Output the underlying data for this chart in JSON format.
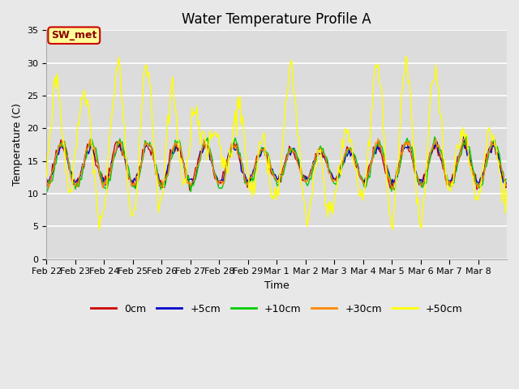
{
  "title": "Water Temperature Profile A",
  "xlabel": "Time",
  "ylabel": "Temperature (C)",
  "ylim": [
    0,
    35
  ],
  "legend_labels": [
    "0cm",
    "+5cm",
    "+10cm",
    "+30cm",
    "+50cm"
  ],
  "legend_colors": [
    "#cc0000",
    "#0000cc",
    "#00cc00",
    "#ff8800",
    "#ffff00"
  ],
  "annotation_text": "SW_met",
  "annotation_bg": "#ffff99",
  "annotation_border": "#cc0000",
  "annotation_text_color": "#880000",
  "x_tick_labels": [
    "Feb 22",
    "Feb 23",
    "Feb 24",
    "Feb 25",
    "Feb 26",
    "Feb 27",
    "Feb 28",
    "Feb 29",
    "Mar 1",
    "Mar 2",
    "Mar 3",
    "Mar 4",
    "Mar 5",
    "Mar 6",
    "Mar 7",
    "Mar 8"
  ],
  "fig_bg": "#e8e8e8",
  "plot_bg": "#dcdcdc",
  "grid_color": "#ffffff",
  "title_fontsize": 12,
  "axis_label_fontsize": 9,
  "tick_fontsize": 8
}
